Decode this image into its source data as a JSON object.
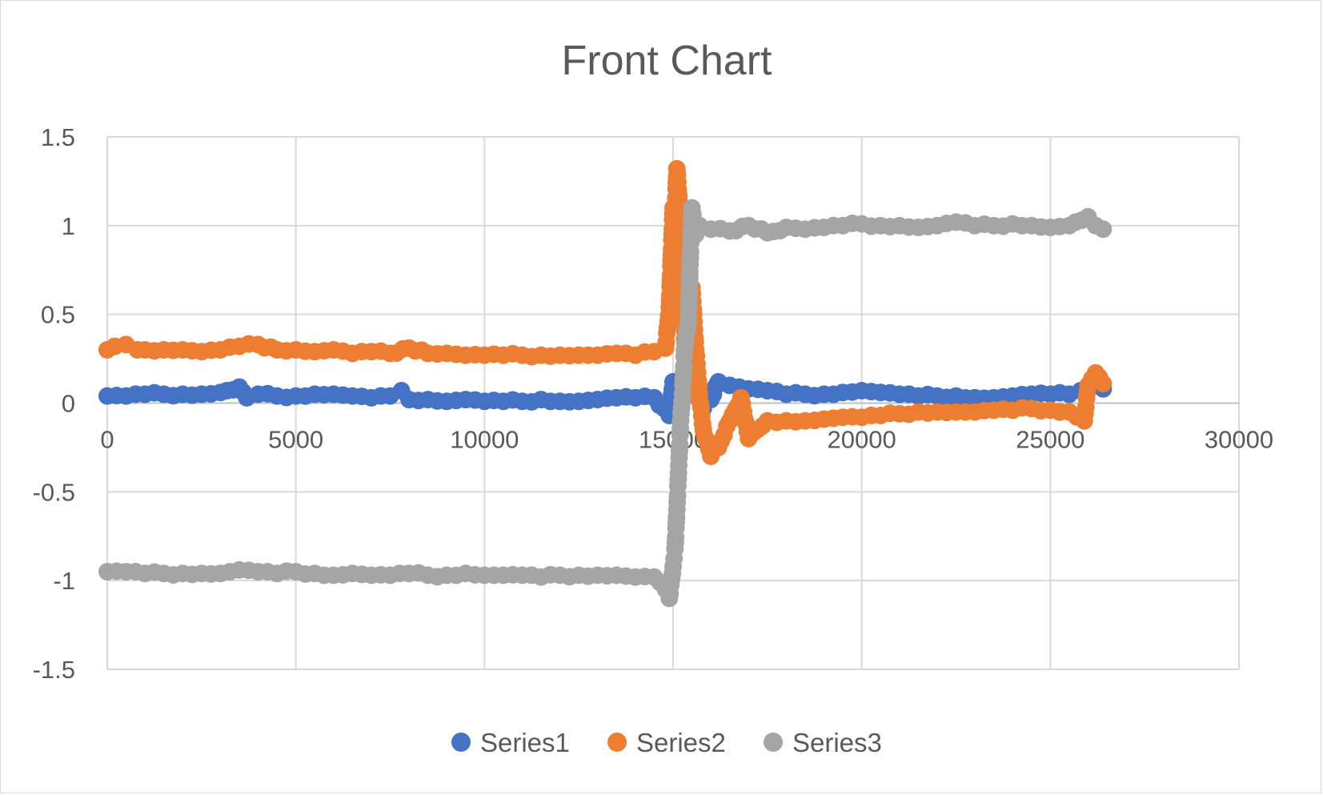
{
  "chart_data": {
    "type": "scatter",
    "title": "Front Chart",
    "xlabel": "",
    "ylabel": "",
    "xlim": [
      0,
      30000
    ],
    "ylim": [
      -1.5,
      1.5
    ],
    "x_ticks": [
      0,
      5000,
      10000,
      15000,
      20000,
      25000,
      30000
    ],
    "y_ticks": [
      1.5,
      1,
      0.5,
      0,
      -0.5,
      -1,
      -1.5
    ],
    "x_tick_labels": [
      "0",
      "5000",
      "10000",
      "15000",
      "20000",
      "25000",
      "30000"
    ],
    "y_tick_labels": [
      "1.5",
      "1",
      "0.5",
      "0",
      "-0.5",
      "-1",
      "-1.5"
    ],
    "grid": true,
    "legend_position": "bottom",
    "series": [
      {
        "name": "Series1",
        "color": "#4472C4",
        "points": [
          [
            0,
            0.04
          ],
          [
            500,
            0.04
          ],
          [
            1000,
            0.05
          ],
          [
            1500,
            0.05
          ],
          [
            2000,
            0.05
          ],
          [
            2500,
            0.05
          ],
          [
            3000,
            0.06
          ],
          [
            3500,
            0.09
          ],
          [
            3700,
            0.03
          ],
          [
            4000,
            0.05
          ],
          [
            4500,
            0.04
          ],
          [
            5000,
            0.04
          ],
          [
            5500,
            0.05
          ],
          [
            6000,
            0.05
          ],
          [
            6500,
            0.04
          ],
          [
            7000,
            0.03
          ],
          [
            7500,
            0.04
          ],
          [
            7800,
            0.07
          ],
          [
            8000,
            0.02
          ],
          [
            8500,
            0.02
          ],
          [
            9000,
            0.01
          ],
          [
            9500,
            0.02
          ],
          [
            10000,
            0.01
          ],
          [
            10500,
            0.01
          ],
          [
            11000,
            0.01
          ],
          [
            11500,
            0.02
          ],
          [
            12000,
            0.01
          ],
          [
            12500,
            0.01
          ],
          [
            13000,
            0.02
          ],
          [
            13500,
            0.03
          ],
          [
            14000,
            0.03
          ],
          [
            14500,
            0.03
          ],
          [
            14900,
            -0.07
          ],
          [
            15000,
            0.12
          ],
          [
            15200,
            0.07
          ],
          [
            15400,
            0.12
          ],
          [
            15500,
            0.2
          ],
          [
            15600,
            0.05
          ],
          [
            15800,
            -0.03
          ],
          [
            16000,
            0.02
          ],
          [
            16200,
            0.12
          ],
          [
            16500,
            0.1
          ],
          [
            17000,
            0.08
          ],
          [
            17500,
            0.07
          ],
          [
            18000,
            0.05
          ],
          [
            18500,
            0.05
          ],
          [
            19000,
            0.05
          ],
          [
            19500,
            0.06
          ],
          [
            20000,
            0.07
          ],
          [
            20500,
            0.06
          ],
          [
            21000,
            0.05
          ],
          [
            21500,
            0.04
          ],
          [
            22000,
            0.04
          ],
          [
            22500,
            0.04
          ],
          [
            23000,
            0.03
          ],
          [
            23500,
            0.03
          ],
          [
            24000,
            0.04
          ],
          [
            24500,
            0.05
          ],
          [
            25000,
            0.05
          ],
          [
            25500,
            0.05
          ],
          [
            25800,
            0.07
          ],
          [
            26000,
            0.08
          ],
          [
            26200,
            0.1
          ],
          [
            26400,
            0.08
          ]
        ]
      },
      {
        "name": "Series2",
        "color": "#ED7D31",
        "points": [
          [
            0,
            0.3
          ],
          [
            200,
            0.32
          ],
          [
            500,
            0.33
          ],
          [
            800,
            0.3
          ],
          [
            1000,
            0.3
          ],
          [
            1500,
            0.3
          ],
          [
            2000,
            0.3
          ],
          [
            2500,
            0.29
          ],
          [
            3000,
            0.3
          ],
          [
            3500,
            0.32
          ],
          [
            4000,
            0.33
          ],
          [
            4500,
            0.3
          ],
          [
            5000,
            0.3
          ],
          [
            5500,
            0.29
          ],
          [
            6000,
            0.3
          ],
          [
            6500,
            0.28
          ],
          [
            7000,
            0.29
          ],
          [
            7500,
            0.28
          ],
          [
            8000,
            0.31
          ],
          [
            8500,
            0.28
          ],
          [
            9000,
            0.28
          ],
          [
            9500,
            0.27
          ],
          [
            10000,
            0.27
          ],
          [
            10500,
            0.27
          ],
          [
            11000,
            0.27
          ],
          [
            11500,
            0.27
          ],
          [
            12000,
            0.27
          ],
          [
            12500,
            0.27
          ],
          [
            13000,
            0.27
          ],
          [
            13500,
            0.28
          ],
          [
            14000,
            0.27
          ],
          [
            14500,
            0.29
          ],
          [
            14800,
            0.31
          ],
          [
            14900,
            0.54
          ],
          [
            15000,
            1.1
          ],
          [
            15050,
            1.05
          ],
          [
            15100,
            1.32
          ],
          [
            15150,
            1.17
          ],
          [
            15200,
            0.83
          ],
          [
            15250,
            0.65
          ],
          [
            15300,
            0.45
          ],
          [
            15350,
            0.1
          ],
          [
            15400,
            0.05
          ],
          [
            15500,
            0.65
          ],
          [
            15600,
            0.3
          ],
          [
            15700,
            0.05
          ],
          [
            15800,
            -0.15
          ],
          [
            16000,
            -0.3
          ],
          [
            16200,
            -0.25
          ],
          [
            16500,
            -0.1
          ],
          [
            16800,
            0.03
          ],
          [
            17000,
            -0.2
          ],
          [
            17500,
            -0.1
          ],
          [
            18000,
            -0.1
          ],
          [
            18500,
            -0.1
          ],
          [
            19000,
            -0.09
          ],
          [
            19500,
            -0.08
          ],
          [
            20000,
            -0.08
          ],
          [
            20500,
            -0.07
          ],
          [
            21000,
            -0.06
          ],
          [
            21500,
            -0.05
          ],
          [
            22000,
            -0.05
          ],
          [
            22500,
            -0.05
          ],
          [
            23000,
            -0.05
          ],
          [
            23500,
            -0.04
          ],
          [
            24000,
            -0.04
          ],
          [
            24500,
            -0.03
          ],
          [
            25000,
            -0.04
          ],
          [
            25500,
            -0.05
          ],
          [
            25900,
            -0.1
          ],
          [
            26000,
            0.1
          ],
          [
            26200,
            0.17
          ],
          [
            26400,
            0.11
          ]
        ]
      },
      {
        "name": "Series3",
        "color": "#A5A5A5",
        "points": [
          [
            0,
            -0.95
          ],
          [
            500,
            -0.95
          ],
          [
            1000,
            -0.96
          ],
          [
            1500,
            -0.96
          ],
          [
            2000,
            -0.96
          ],
          [
            2500,
            -0.96
          ],
          [
            3000,
            -0.96
          ],
          [
            3500,
            -0.94
          ],
          [
            4000,
            -0.95
          ],
          [
            4500,
            -0.96
          ],
          [
            5000,
            -0.95
          ],
          [
            5500,
            -0.96
          ],
          [
            6000,
            -0.97
          ],
          [
            6500,
            -0.96
          ],
          [
            7000,
            -0.97
          ],
          [
            7500,
            -0.97
          ],
          [
            8000,
            -0.96
          ],
          [
            8500,
            -0.97
          ],
          [
            9000,
            -0.97
          ],
          [
            9500,
            -0.96
          ],
          [
            10000,
            -0.97
          ],
          [
            10500,
            -0.97
          ],
          [
            11000,
            -0.97
          ],
          [
            11500,
            -0.98
          ],
          [
            12000,
            -0.97
          ],
          [
            12500,
            -0.97
          ],
          [
            13000,
            -0.97
          ],
          [
            13500,
            -0.97
          ],
          [
            14000,
            -0.98
          ],
          [
            14500,
            -0.98
          ],
          [
            14800,
            -1.05
          ],
          [
            14900,
            -1.1
          ],
          [
            15000,
            -0.92
          ],
          [
            15050,
            -0.82
          ],
          [
            15100,
            -0.6
          ],
          [
            15150,
            -0.35
          ],
          [
            15200,
            -0.1
          ],
          [
            15250,
            0.05
          ],
          [
            15300,
            0.3
          ],
          [
            15400,
            0.45
          ],
          [
            15450,
            0.78
          ],
          [
            15500,
            1.1
          ],
          [
            15600,
            0.95
          ],
          [
            15700,
            1.0
          ],
          [
            16000,
            0.98
          ],
          [
            16500,
            0.97
          ],
          [
            17000,
            1.0
          ],
          [
            17500,
            0.96
          ],
          [
            18000,
            0.99
          ],
          [
            18500,
            0.98
          ],
          [
            19000,
            0.99
          ],
          [
            19500,
            1.0
          ],
          [
            20000,
            1.01
          ],
          [
            20500,
            1.0
          ],
          [
            21000,
            1.0
          ],
          [
            21500,
            0.99
          ],
          [
            22000,
            1.0
          ],
          [
            22500,
            1.02
          ],
          [
            23000,
            1.0
          ],
          [
            23500,
            1.0
          ],
          [
            24000,
            1.01
          ],
          [
            24500,
            1.0
          ],
          [
            25000,
            0.99
          ],
          [
            25500,
            1.0
          ],
          [
            26000,
            1.05
          ],
          [
            26200,
            1.0
          ],
          [
            26400,
            0.98
          ]
        ]
      }
    ]
  }
}
